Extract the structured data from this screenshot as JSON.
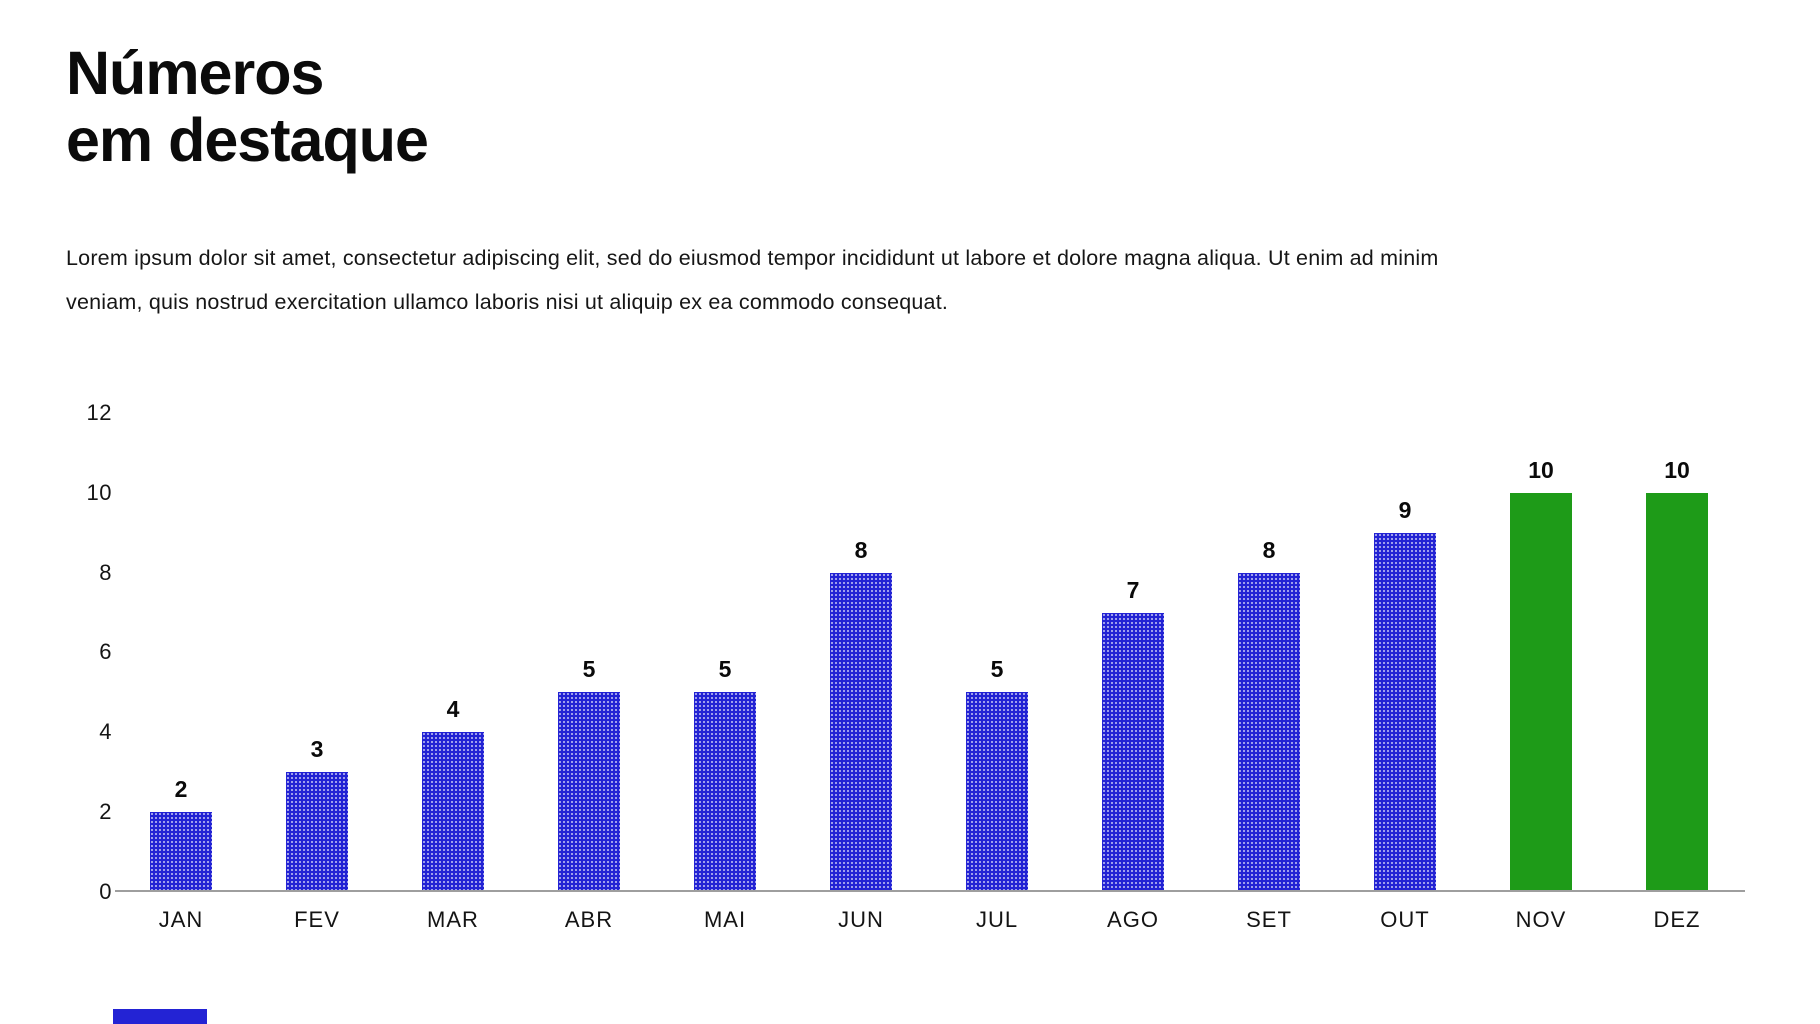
{
  "title": {
    "line1": "Números",
    "line2": "em destaque"
  },
  "intro": {
    "line1": "Lorem ipsum dolor sit amet, consectetur adipiscing elit, sed do eiusmod tempor incididunt ut labore et dolore magna aliqua. Ut enim ad minim",
    "line2": "veniam, quis nostrud exercitation ullamco laboris nisi ut aliquip ex ea commodo consequat."
  },
  "colors": {
    "bar_blue": "#2323d4",
    "bar_green": "#1e9b18",
    "axis_line": "#9e9e9e",
    "text": "#111111"
  },
  "chart_data": {
    "type": "bar",
    "title": "",
    "xlabel": "",
    "ylabel": "",
    "categories": [
      "JAN",
      "FEV",
      "MAR",
      "ABR",
      "MAI",
      "JUN",
      "JUL",
      "AGO",
      "SET",
      "OUT",
      "NOV",
      "DEZ"
    ],
    "values": [
      2,
      3,
      4,
      5,
      5,
      8,
      5,
      7,
      8,
      9,
      10,
      10
    ],
    "data_labels": [
      "2",
      "3",
      "4",
      "5",
      "5",
      "8",
      "5",
      "7",
      "8",
      "9",
      "10",
      "10"
    ],
    "highlighted_categories": [
      "NOV",
      "DEZ"
    ],
    "series_color": "#2323d4",
    "highlight_color": "#1e9b18",
    "yticks": [
      0,
      2,
      4,
      6,
      8,
      10,
      12
    ],
    "ylim": [
      0,
      12
    ],
    "grid": false,
    "legend": false,
    "bar_texture": "white-dot-halftone on blue bars, solid green on highlighted bars"
  }
}
